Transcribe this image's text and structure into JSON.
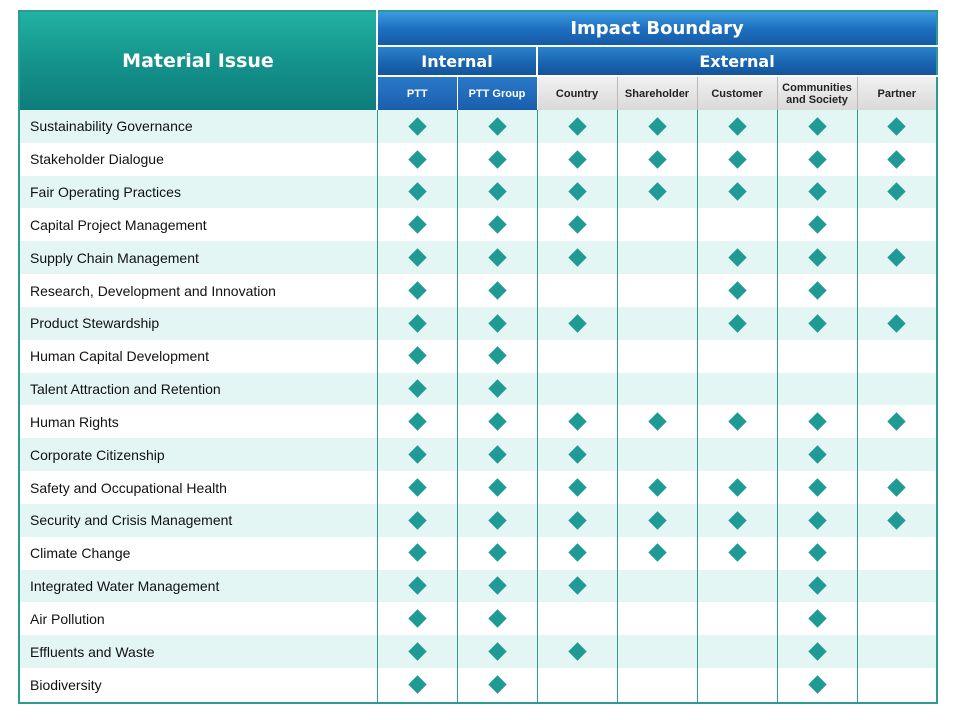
{
  "header": {
    "material_issue": "Material Issue",
    "impact_boundary": "Impact Boundary",
    "internal": "Internal",
    "external": "External"
  },
  "columns": [
    {
      "label": "PTT",
      "group": "internal"
    },
    {
      "label": "PTT Group",
      "group": "internal"
    },
    {
      "label": "Country",
      "group": "external"
    },
    {
      "label": "Shareholder",
      "group": "external"
    },
    {
      "label": "Customer",
      "group": "external"
    },
    {
      "label": "Communities and Society",
      "group": "external"
    },
    {
      "label": "Partner",
      "group": "external"
    }
  ],
  "rows": [
    {
      "issue": "Sustainability  Governance",
      "marks": [
        1,
        1,
        1,
        1,
        1,
        1,
        1
      ]
    },
    {
      "issue": "Stakeholder Dialogue",
      "marks": [
        1,
        1,
        1,
        1,
        1,
        1,
        1
      ]
    },
    {
      "issue": "Fair Operating Practices",
      "marks": [
        1,
        1,
        1,
        1,
        1,
        1,
        1
      ]
    },
    {
      "issue": "Capital Project Management",
      "marks": [
        1,
        1,
        1,
        0,
        0,
        1,
        0
      ]
    },
    {
      "issue": "Supply Chain Management",
      "marks": [
        1,
        1,
        1,
        0,
        1,
        1,
        1
      ]
    },
    {
      "issue": "Research, Development and Innovation",
      "marks": [
        1,
        1,
        0,
        0,
        1,
        1,
        0
      ]
    },
    {
      "issue": "Product Stewardship",
      "marks": [
        1,
        1,
        1,
        0,
        1,
        1,
        1
      ]
    },
    {
      "issue": "Human Capital Development",
      "marks": [
        1,
        1,
        0,
        0,
        0,
        0,
        0
      ]
    },
    {
      "issue": "Talent Attraction and Retention",
      "marks": [
        1,
        1,
        0,
        0,
        0,
        0,
        0
      ]
    },
    {
      "issue": "Human Rights",
      "marks": [
        1,
        1,
        1,
        1,
        1,
        1,
        1
      ]
    },
    {
      "issue": "Corporate Citizenship",
      "marks": [
        1,
        1,
        1,
        0,
        0,
        1,
        0
      ]
    },
    {
      "issue": "Safety and Occupational Health",
      "marks": [
        1,
        1,
        1,
        1,
        1,
        1,
        1
      ]
    },
    {
      "issue": "Security and Crisis Management",
      "marks": [
        1,
        1,
        1,
        1,
        1,
        1,
        1
      ]
    },
    {
      "issue": "Climate Change",
      "marks": [
        1,
        1,
        1,
        1,
        1,
        1,
        0
      ]
    },
    {
      "issue": "Integrated Water Management",
      "marks": [
        1,
        1,
        1,
        0,
        0,
        1,
        0
      ]
    },
    {
      "issue": "Air Pollution",
      "marks": [
        1,
        1,
        0,
        0,
        0,
        1,
        0
      ]
    },
    {
      "issue": "Effluents and Waste",
      "marks": [
        1,
        1,
        1,
        0,
        0,
        1,
        0
      ]
    },
    {
      "issue": "Biodiversity",
      "marks": [
        1,
        1,
        0,
        0,
        0,
        1,
        0
      ]
    }
  ],
  "marker_color": "#1f9a94"
}
